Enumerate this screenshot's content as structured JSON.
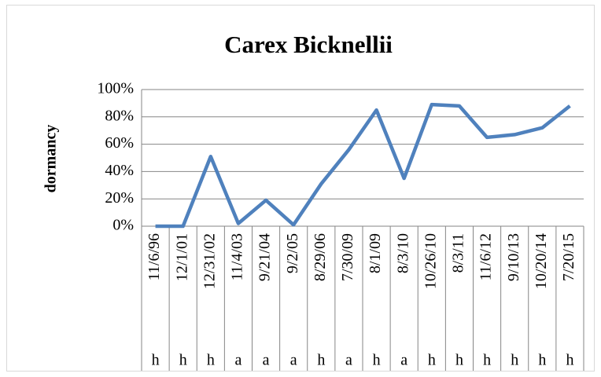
{
  "chart_data": {
    "type": "line",
    "title": "Carex Bicknellii",
    "y_label": "dormancy",
    "categories": [
      "11/6/96",
      "12/1/01",
      "12/31/02",
      "11/4/03",
      "9/21/04",
      "9/2/05",
      "8/29/06",
      "7/30/09",
      "8/1/09",
      "8/3/10",
      "10/26/10",
      "8/3/11",
      "11/6/12",
      "9/10/13",
      "10/20/14",
      "7/20/15"
    ],
    "category_groups": [
      "h",
      "h",
      "h",
      "a",
      "a",
      "a",
      "h",
      "a",
      "h",
      "a",
      "h",
      "h",
      "h",
      "h",
      "h",
      "h"
    ],
    "values": [
      0,
      0,
      51,
      2,
      19,
      1,
      31,
      56,
      85,
      35,
      89,
      88,
      65,
      67,
      72,
      88
    ],
    "color": "#4f81bd",
    "ylim": [
      0,
      100
    ],
    "yticks": [
      {
        "value": 0,
        "label": "0%"
      },
      {
        "value": 20,
        "label": "20%"
      },
      {
        "value": 40,
        "label": "40%"
      },
      {
        "value": 60,
        "label": "60%"
      },
      {
        "value": 80,
        "label": "80%"
      },
      {
        "value": 100,
        "label": "100%"
      }
    ],
    "grid": true
  }
}
